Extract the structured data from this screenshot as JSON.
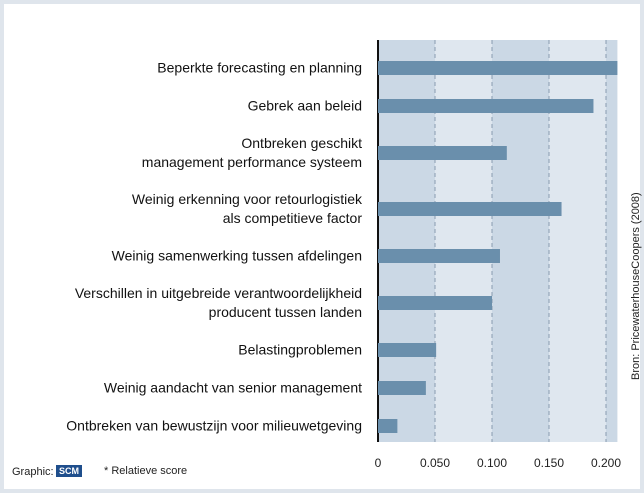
{
  "chart_data": {
    "type": "bar",
    "orientation": "horizontal",
    "categories": [
      "Beperkte forecasting en planning",
      "Gebrek aan beleid",
      "Ontbreken geschikt\nmanagement performance systeem",
      "Weinig erkenning voor retourlogistiek\nals competitieve factor",
      "Weinig samenwerking tussen afdelingen",
      "Verschillen in uitgebreide verantwoordelijkheid\nproducent tussen landen",
      "Belastingproblemen",
      "Weinig aandacht van senior management",
      "Ontbreken van bewustzijn voor milieuwetgeving"
    ],
    "values": [
      0.21,
      0.189,
      0.113,
      0.161,
      0.107,
      0.1,
      0.051,
      0.042,
      0.017
    ],
    "color": "#6a8fac",
    "xlim": [
      0,
      0.21
    ],
    "xticks": [
      0,
      {
        "value": 0.05,
        "label": "0.050"
      },
      {
        "value": 0.1,
        "label": "0.100"
      },
      {
        "value": 0.15,
        "label": "0.150"
      },
      {
        "value": 0.2,
        "label": "0.200"
      }
    ],
    "grid": true,
    "note": "* Relatieve score",
    "credit": "Graphic:",
    "logo": "SCM",
    "source": "Bron: PricewaterhouseCoopers (2008)"
  }
}
